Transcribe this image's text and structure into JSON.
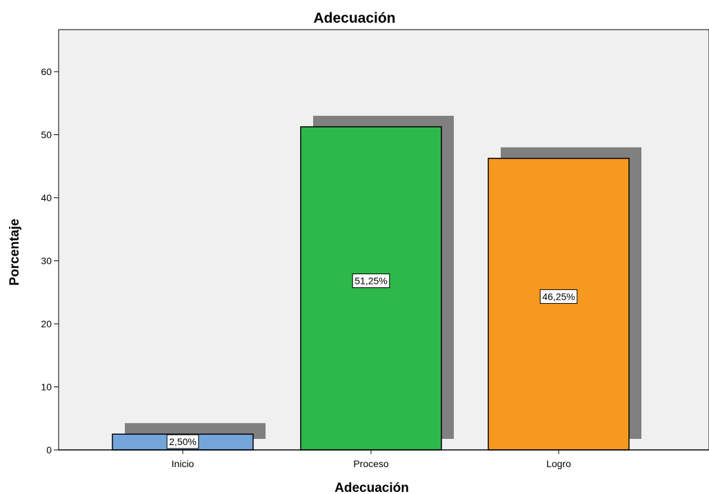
{
  "chart_data": {
    "type": "bar",
    "title": "Adecuación",
    "xlabel": "Adecuación",
    "ylabel": "Porcentaje",
    "categories": [
      "Inicio",
      "Proceso",
      "Logro"
    ],
    "values": [
      2.5,
      51.25,
      46.25
    ],
    "data_labels": [
      "2,50%",
      "51,25%",
      "46,25%"
    ],
    "colors": [
      "#74A5DA",
      "#2DB84A",
      "#F7991F"
    ],
    "yticks": [
      0,
      10,
      20,
      30,
      40,
      50,
      60
    ],
    "ylim": [
      0,
      60
    ],
    "grid": false,
    "legend": "none",
    "shadow_color": "#808080",
    "plot_background": "#F0F0F0"
  }
}
